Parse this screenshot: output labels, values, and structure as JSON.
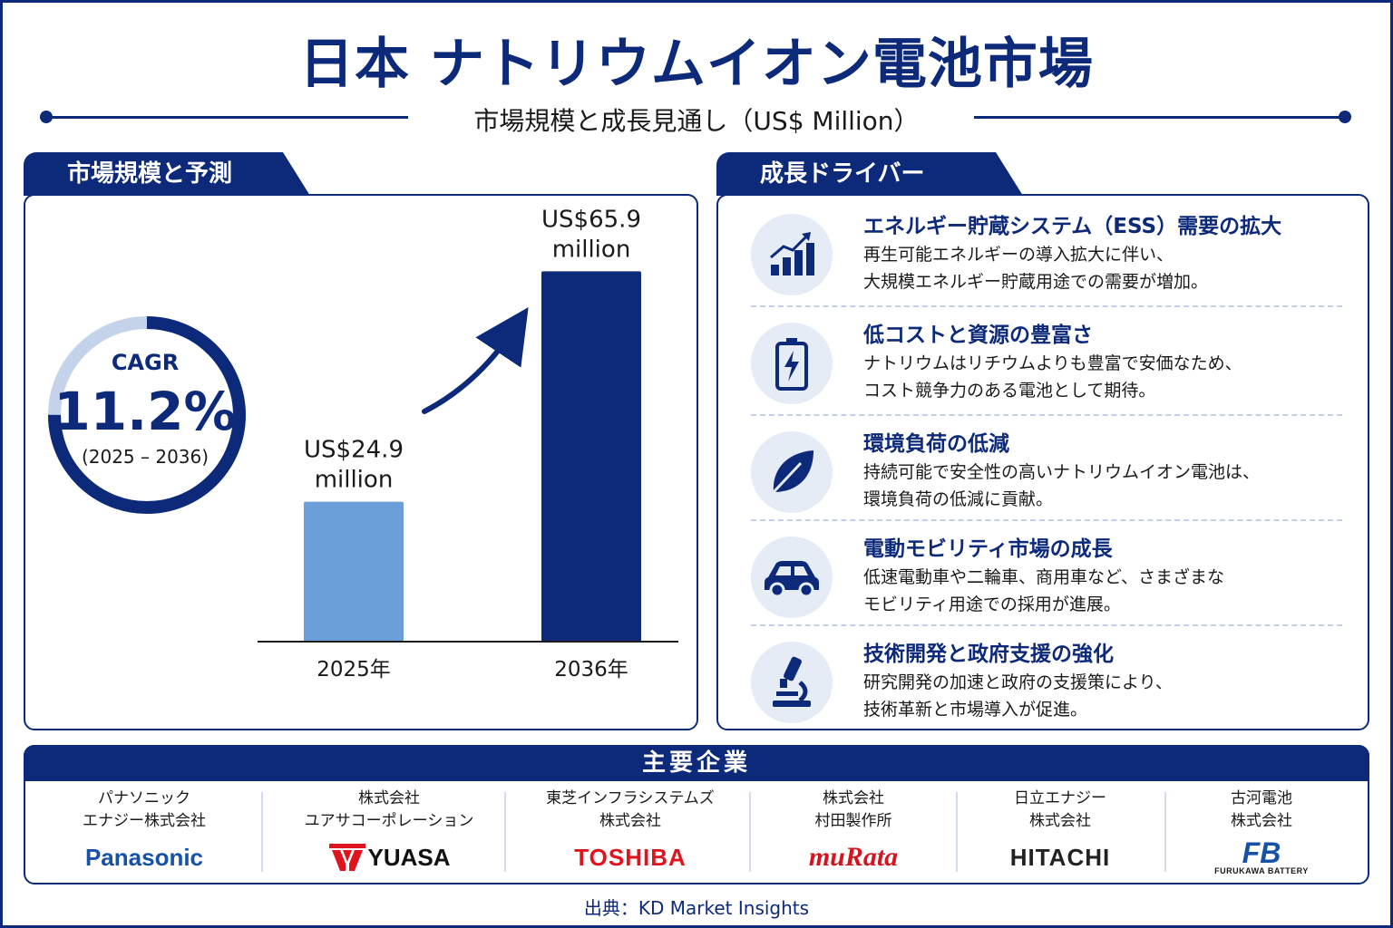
{
  "title": "日本 ナトリウムイオン電池市場",
  "subtitle": "市場規模と成長見通し（US$ Million）",
  "left_section": {
    "tab": "市場規模と予測",
    "cagr": {
      "label": "CAGR",
      "value": "11.2%",
      "period": "(2025 – 2036)"
    }
  },
  "chart_data": {
    "type": "bar",
    "categories": [
      "2025年",
      "2036年"
    ],
    "values": [
      24.9,
      65.9
    ],
    "data_labels": [
      [
        "US$24.9",
        "million"
      ],
      [
        "US$65.9",
        "million"
      ]
    ],
    "bar_colors": [
      "#6a9fd8",
      "#0d2a7a"
    ],
    "ylim": [
      0,
      70
    ],
    "title": "",
    "xlabel": "",
    "ylabel": "",
    "grid": false,
    "cagr_ring_fraction": 0.75
  },
  "right_section": {
    "tab": "成長ドライバー",
    "drivers": [
      {
        "icon": "bar-chart-growth-icon",
        "title": "エネルギー貯蔵システム（ESS）需要の拡大",
        "line1": "再生可能エネルギーの導入拡大に伴い、",
        "line2": "大規模エネルギー貯蔵用途での需要が増加。"
      },
      {
        "icon": "battery-icon",
        "title": "低コストと資源の豊富さ",
        "line1": "ナトリウムはリチウムよりも豊富で安価なため、",
        "line2": "コスト競争力のある電池として期待。"
      },
      {
        "icon": "leaf-icon",
        "title": "環境負荷の低減",
        "line1": "持続可能で安全性の高いナトリウムイオン電池は、",
        "line2": "環境負荷の低減に貢献。"
      },
      {
        "icon": "car-icon",
        "title": "電動モビリティ市場の成長",
        "line1": "低速電動車や二輪車、商用車など、さまざまな",
        "line2": "モビリティ用途での採用が進展。"
      },
      {
        "icon": "microscope-icon",
        "title": "技術開発と政府支援の強化",
        "line1": "研究開発の加速と政府の支援策により、",
        "line2": "技術革新と市場導入が促進。"
      }
    ]
  },
  "companies": {
    "header": "主要企業",
    "items": [
      {
        "name1": "パナソニック",
        "name2": "エナジー株式会社",
        "logo": "Panasonic"
      },
      {
        "name1": "株式会社",
        "name2": "ユアサコーポレーション",
        "logo": "YUASA"
      },
      {
        "name1": "東芝インフラシステムズ",
        "name2": "株式会社",
        "logo": "TOSHIBA"
      },
      {
        "name1": "株式会社",
        "name2": "村田製作所",
        "logo": "muRata"
      },
      {
        "name1": "日立エナジー",
        "name2": "株式会社",
        "logo": "HITACHI"
      },
      {
        "name1": "古河電池",
        "name2": "株式会社",
        "logo": "FB",
        "logo_sub": "FURUKAWA BATTERY"
      }
    ]
  },
  "source": "出典：KD Market Insights",
  "colors": {
    "navy": "#0d2a7a",
    "light_blue": "#6a9fd8",
    "ring_light": "#c4d3ea"
  }
}
